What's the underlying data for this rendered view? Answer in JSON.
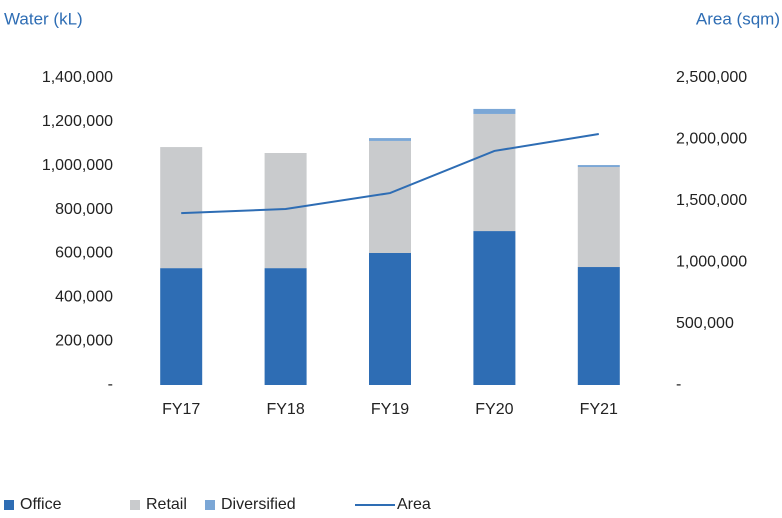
{
  "chart_data": {
    "type": "bar",
    "y_label": "Water (kL)",
    "y2_label": "Area (sqm)",
    "categories": [
      "FY17",
      "FY18",
      "FY19",
      "FY20",
      "FY21"
    ],
    "stacked": true,
    "series": [
      {
        "name": "Office",
        "color": "#2e6db4",
        "values": [
          533000,
          533000,
          602000,
          702000,
          538000
        ]
      },
      {
        "name": "Retail",
        "color": "#c9cbcd",
        "values": [
          552000,
          525000,
          511000,
          534000,
          456000
        ]
      },
      {
        "name": "Diversified",
        "color": "#7ba7d6",
        "values": [
          0,
          0,
          13000,
          23000,
          9000
        ]
      },
      {
        "name": "Area",
        "type": "line",
        "axis": "y2",
        "color": "#2e6db4",
        "values": [
          1400000,
          1433000,
          1563000,
          1906000,
          2044000
        ]
      }
    ],
    "ylim": [
      0,
      1400000
    ],
    "yticks": [
      {
        "value": 0,
        "label": "-"
      },
      {
        "value": 200000,
        "label": "200,000"
      },
      {
        "value": 400000,
        "label": "400,000"
      },
      {
        "value": 600000,
        "label": "600,000"
      },
      {
        "value": 800000,
        "label": "800,000"
      },
      {
        "value": 1000000,
        "label": "1,000,000"
      },
      {
        "value": 1200000,
        "label": "1,200,000"
      },
      {
        "value": 1400000,
        "label": "1,400,000"
      }
    ],
    "y2lim": [
      0,
      2500000
    ],
    "y2ticks": [
      {
        "value": 0,
        "label": "-"
      },
      {
        "value": 500000,
        "label": "500,000"
      },
      {
        "value": 1000000,
        "label": "1,000,000"
      },
      {
        "value": 1500000,
        "label": "1,500,000"
      },
      {
        "value": 2000000,
        "label": "2,000,000"
      },
      {
        "value": 2500000,
        "label": "2,500,000"
      }
    ],
    "grid": false,
    "legend": "bottom-left"
  }
}
